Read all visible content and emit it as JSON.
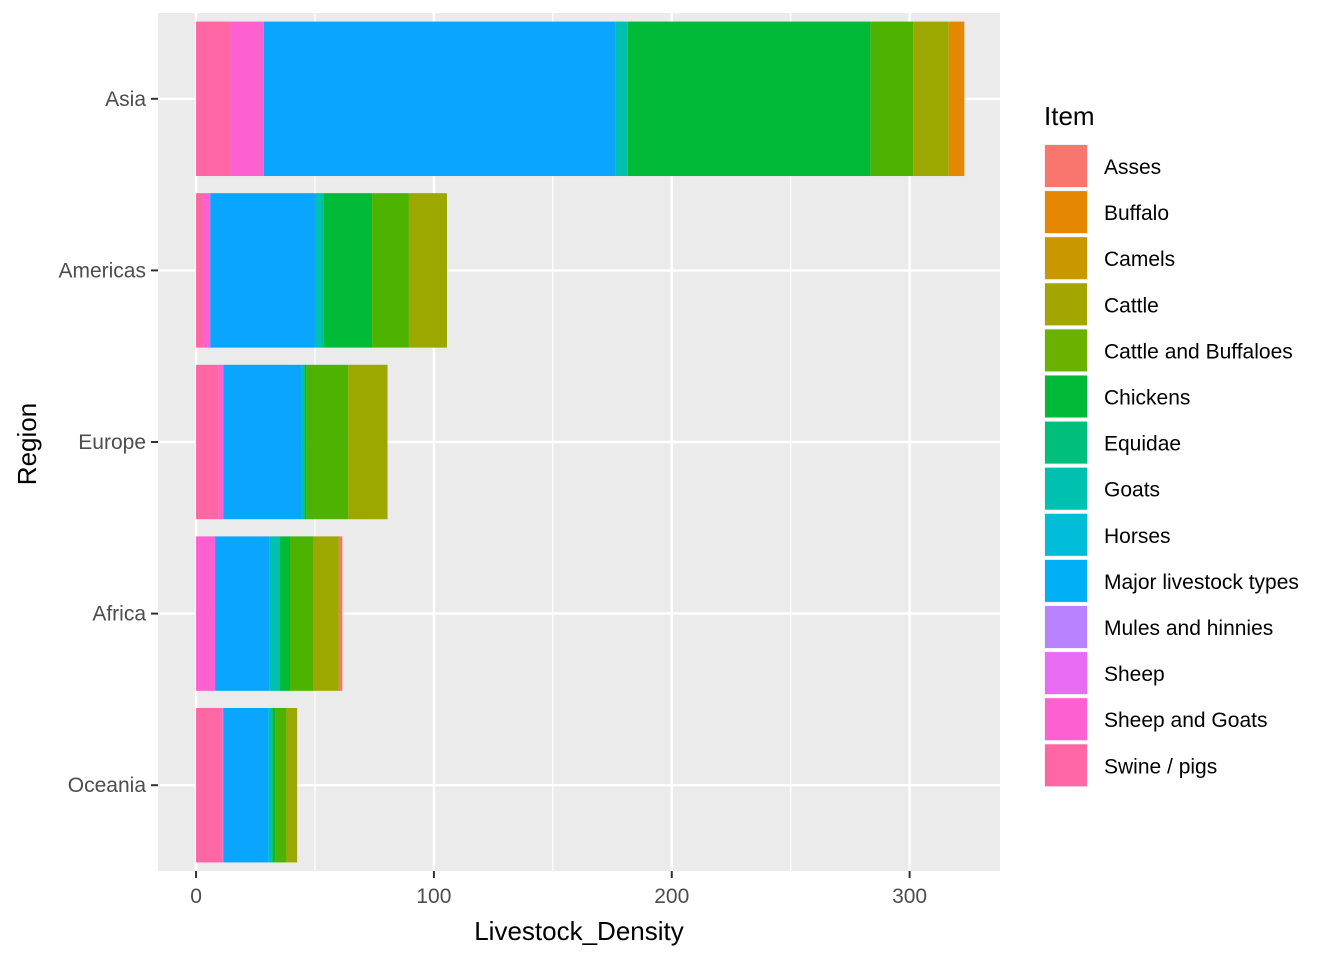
{
  "chart_data": {
    "type": "bar",
    "orientation": "horizontal",
    "stacked": true,
    "xlabel": "Livestock_Density",
    "ylabel": "Region",
    "xlim": [
      -16,
      338
    ],
    "xticks": [
      0,
      100,
      200,
      300
    ],
    "xtick_labels": [
      "0",
      "100",
      "200",
      "300"
    ],
    "grid": true,
    "legend_position": "right",
    "legend": {
      "title": "Item",
      "items": [
        {
          "name": "Asses",
          "color": "#F8766D"
        },
        {
          "name": "Buffalo",
          "color": "#E58700"
        },
        {
          "name": "Camels",
          "color": "#C99800"
        },
        {
          "name": "Cattle",
          "color": "#A3A500"
        },
        {
          "name": "Cattle and Buffaloes",
          "color": "#6BB100"
        },
        {
          "name": "Chickens",
          "color": "#00BA38"
        },
        {
          "name": "Equidae",
          "color": "#00BF7D"
        },
        {
          "name": "Goats",
          "color": "#00C0AF"
        },
        {
          "name": "Horses",
          "color": "#00BCD8"
        },
        {
          "name": "Major livestock types",
          "color": "#00B0F6"
        },
        {
          "name": "Mules and hinnies",
          "color": "#B983FF"
        },
        {
          "name": "Sheep",
          "color": "#E76BF3"
        },
        {
          "name": "Sheep and Goats",
          "color": "#FD61D1"
        },
        {
          "name": "Swine / pigs",
          "color": "#FF67A4"
        }
      ]
    },
    "regions": [
      "Asia",
      "Americas",
      "Europe",
      "Africa",
      "Oceania"
    ],
    "series": [
      {
        "name": "Swine / pigs",
        "color": "#FF67A4",
        "values": [
          14.5,
          3,
          9.5,
          0,
          11
        ]
      },
      {
        "name": "Sheep and Goats",
        "color": "#FD61D1",
        "values": [
          14,
          3,
          2,
          8,
          0.5
        ]
      },
      {
        "name": "Sheep",
        "color": "#E76BF3",
        "values": [
          0,
          0,
          0,
          0,
          0
        ]
      },
      {
        "name": "Mules and hinnies",
        "color": "#B983FF",
        "values": [
          0,
          0,
          0,
          0,
          0
        ]
      },
      {
        "name": "Major livestock types",
        "color": "#0AA5FF",
        "values": [
          148,
          44,
          33,
          23,
          19
        ]
      },
      {
        "name": "Horses",
        "color": "#00BCD8",
        "values": [
          0,
          0,
          0,
          0,
          0
        ]
      },
      {
        "name": "Goats",
        "color": "#00C0AF",
        "values": [
          5,
          3.5,
          1,
          4,
          1.5
        ]
      },
      {
        "name": "Equidae",
        "color": "#00BF7D",
        "values": [
          0,
          0,
          0,
          0,
          0
        ]
      },
      {
        "name": "Chickens",
        "color": "#00BA38",
        "values": [
          102,
          20.5,
          1,
          4.5,
          1.5
        ]
      },
      {
        "name": "Cattle and Buffaloes",
        "color": "#4DB300",
        "values": [
          18,
          15.5,
          17.5,
          10,
          4.5
        ]
      },
      {
        "name": "Cattle",
        "color": "#9CA800",
        "values": [
          15,
          16,
          16.5,
          10.5,
          4.5
        ]
      },
      {
        "name": "Camels",
        "color": "#C99800",
        "values": [
          0,
          0,
          0,
          0.5,
          0
        ]
      },
      {
        "name": "Buffalo",
        "color": "#E58700",
        "values": [
          6.5,
          0,
          0,
          0,
          0
        ]
      },
      {
        "name": "Asses",
        "color": "#F8766D",
        "values": [
          0,
          0,
          0,
          1,
          0
        ]
      }
    ]
  }
}
